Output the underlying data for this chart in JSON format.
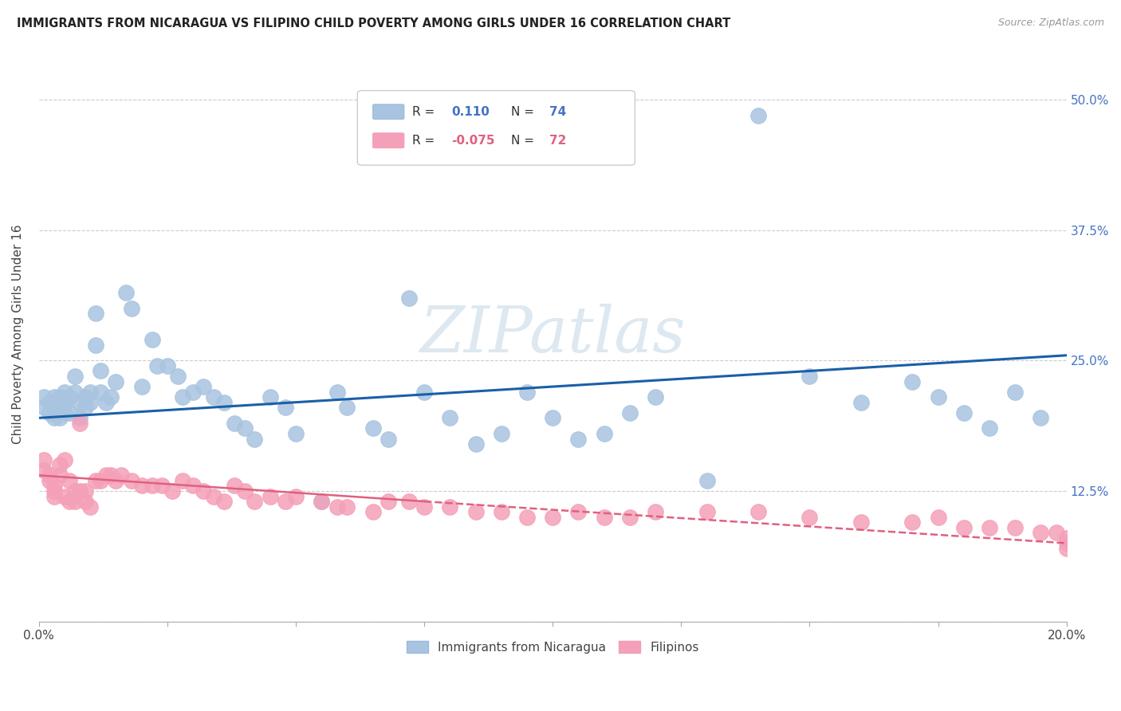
{
  "title": "IMMIGRANTS FROM NICARAGUA VS FILIPINO CHILD POVERTY AMONG GIRLS UNDER 16 CORRELATION CHART",
  "source": "Source: ZipAtlas.com",
  "ylabel": "Child Poverty Among Girls Under 16",
  "ytick_positions": [
    0.0,
    0.125,
    0.25,
    0.375,
    0.5
  ],
  "ytick_labels": [
    "",
    "12.5%",
    "25.0%",
    "37.5%",
    "50.0%"
  ],
  "xtick_positions": [
    0.0,
    0.025,
    0.05,
    0.075,
    0.1,
    0.125,
    0.15,
    0.175,
    0.2
  ],
  "xlim": [
    0.0,
    0.2
  ],
  "ylim": [
    0.0,
    0.55
  ],
  "color_nicaragua": "#a8c4e0",
  "color_filipino": "#f4a0b8",
  "trend_color_nicaragua": "#1a5fa8",
  "trend_color_filipino": "#e06080",
  "watermark": "ZIPatlas",
  "r_nicaragua": 0.11,
  "n_nicaragua": 74,
  "r_filipino": -0.075,
  "n_filipino": 72,
  "nicaragua_x": [
    0.001,
    0.001,
    0.002,
    0.002,
    0.003,
    0.003,
    0.003,
    0.004,
    0.004,
    0.004,
    0.005,
    0.005,
    0.005,
    0.006,
    0.006,
    0.007,
    0.007,
    0.008,
    0.008,
    0.009,
    0.009,
    0.01,
    0.01,
    0.011,
    0.011,
    0.012,
    0.012,
    0.013,
    0.014,
    0.015,
    0.017,
    0.018,
    0.02,
    0.022,
    0.023,
    0.025,
    0.027,
    0.028,
    0.03,
    0.032,
    0.034,
    0.036,
    0.038,
    0.04,
    0.042,
    0.045,
    0.048,
    0.05,
    0.055,
    0.058,
    0.06,
    0.065,
    0.068,
    0.072,
    0.075,
    0.08,
    0.085,
    0.09,
    0.095,
    0.1,
    0.105,
    0.11,
    0.115,
    0.12,
    0.13,
    0.14,
    0.15,
    0.16,
    0.17,
    0.175,
    0.18,
    0.185,
    0.19,
    0.195
  ],
  "nicaragua_y": [
    0.215,
    0.205,
    0.21,
    0.2,
    0.215,
    0.205,
    0.195,
    0.215,
    0.205,
    0.195,
    0.22,
    0.21,
    0.2,
    0.215,
    0.2,
    0.235,
    0.22,
    0.21,
    0.195,
    0.215,
    0.205,
    0.22,
    0.21,
    0.295,
    0.265,
    0.24,
    0.22,
    0.21,
    0.215,
    0.23,
    0.315,
    0.3,
    0.225,
    0.27,
    0.245,
    0.245,
    0.235,
    0.215,
    0.22,
    0.225,
    0.215,
    0.21,
    0.19,
    0.185,
    0.175,
    0.215,
    0.205,
    0.18,
    0.115,
    0.22,
    0.205,
    0.185,
    0.175,
    0.31,
    0.22,
    0.195,
    0.17,
    0.18,
    0.22,
    0.195,
    0.175,
    0.18,
    0.2,
    0.215,
    0.135,
    0.485,
    0.235,
    0.21,
    0.23,
    0.215,
    0.2,
    0.185,
    0.22,
    0.195
  ],
  "filipino_x": [
    0.001,
    0.001,
    0.002,
    0.002,
    0.003,
    0.003,
    0.003,
    0.004,
    0.004,
    0.005,
    0.005,
    0.006,
    0.006,
    0.007,
    0.007,
    0.008,
    0.008,
    0.009,
    0.009,
    0.01,
    0.011,
    0.012,
    0.013,
    0.014,
    0.015,
    0.016,
    0.018,
    0.02,
    0.022,
    0.024,
    0.026,
    0.028,
    0.03,
    0.032,
    0.034,
    0.036,
    0.038,
    0.04,
    0.042,
    0.045,
    0.048,
    0.05,
    0.055,
    0.058,
    0.06,
    0.065,
    0.068,
    0.072,
    0.075,
    0.08,
    0.085,
    0.09,
    0.095,
    0.1,
    0.105,
    0.11,
    0.115,
    0.12,
    0.13,
    0.14,
    0.15,
    0.16,
    0.17,
    0.175,
    0.18,
    0.185,
    0.19,
    0.195,
    0.198,
    0.2,
    0.2,
    0.2
  ],
  "filipino_y": [
    0.155,
    0.145,
    0.14,
    0.135,
    0.13,
    0.125,
    0.12,
    0.14,
    0.15,
    0.155,
    0.12,
    0.135,
    0.115,
    0.115,
    0.125,
    0.19,
    0.125,
    0.115,
    0.125,
    0.11,
    0.135,
    0.135,
    0.14,
    0.14,
    0.135,
    0.14,
    0.135,
    0.13,
    0.13,
    0.13,
    0.125,
    0.135,
    0.13,
    0.125,
    0.12,
    0.115,
    0.13,
    0.125,
    0.115,
    0.12,
    0.115,
    0.12,
    0.115,
    0.11,
    0.11,
    0.105,
    0.115,
    0.115,
    0.11,
    0.11,
    0.105,
    0.105,
    0.1,
    0.1,
    0.105,
    0.1,
    0.1,
    0.105,
    0.105,
    0.105,
    0.1,
    0.095,
    0.095,
    0.1,
    0.09,
    0.09,
    0.09,
    0.085,
    0.085,
    0.08,
    0.075,
    0.07
  ]
}
